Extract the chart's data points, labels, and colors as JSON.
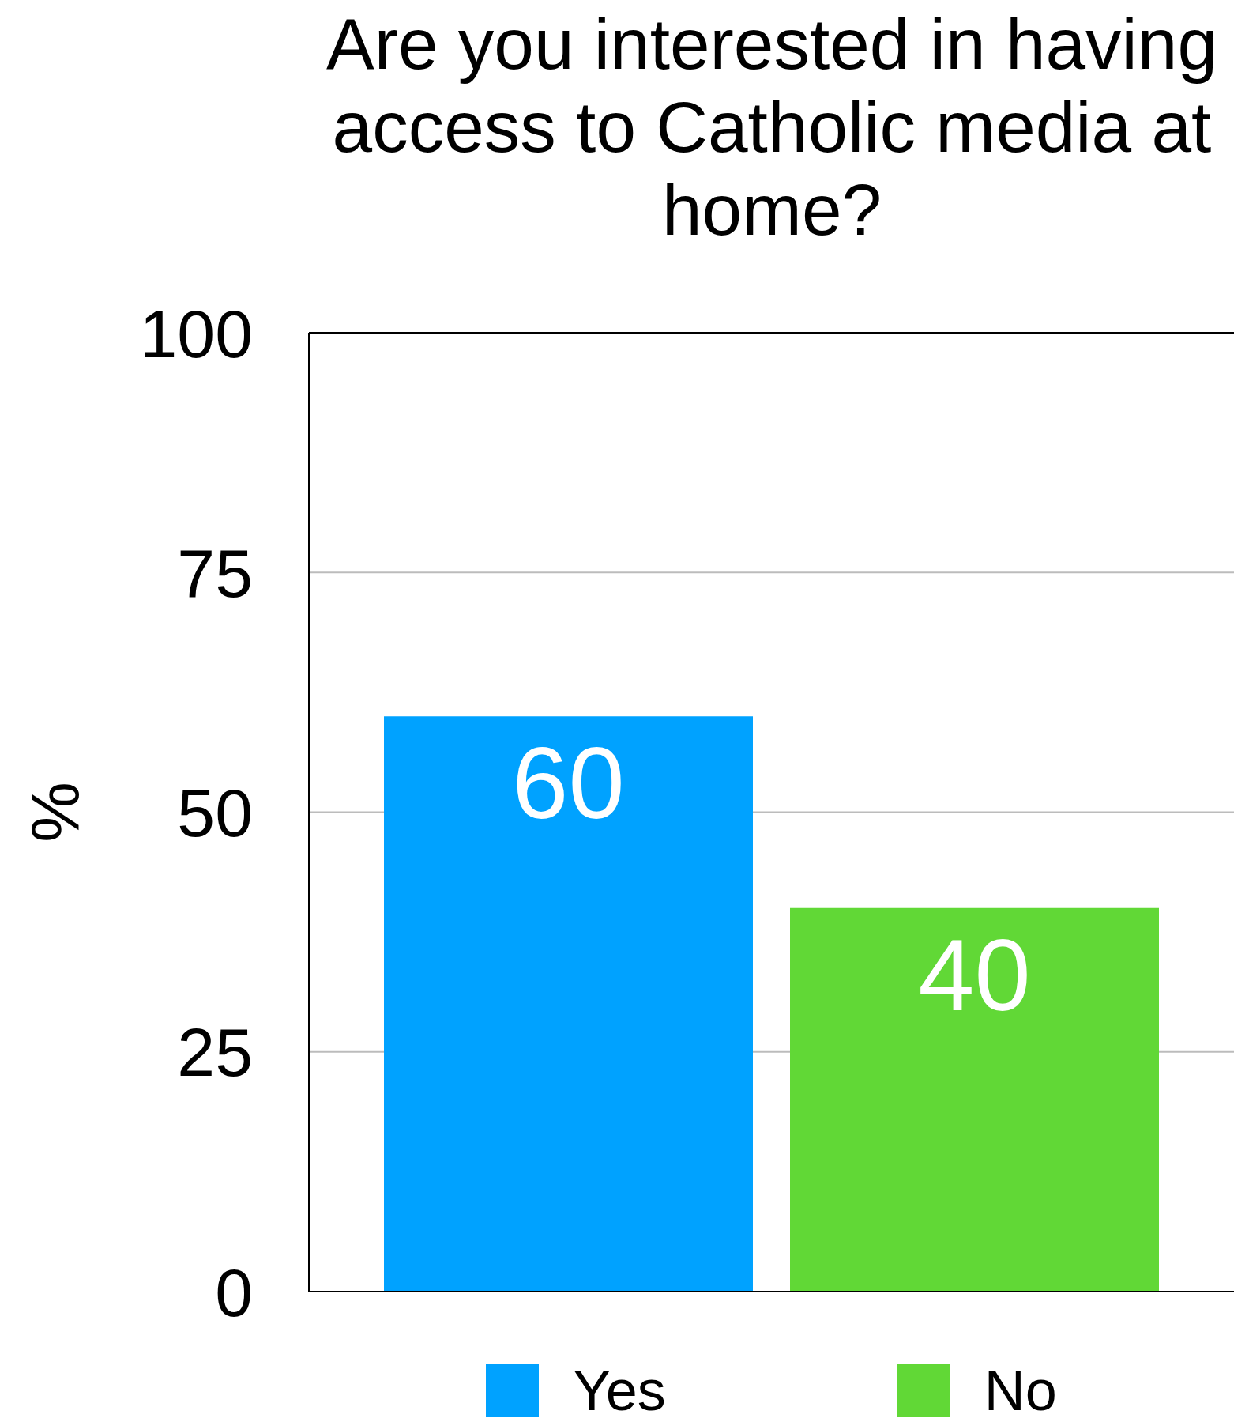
{
  "chart_data": {
    "type": "bar",
    "title": "Are you interested in having access to Catholic media at home?",
    "ylabel": "%",
    "categories": [
      null
    ],
    "series": [
      {
        "name": "Yes",
        "color": "#00a2ff",
        "values": [
          60
        ]
      },
      {
        "name": "No",
        "color": "#61d836",
        "values": [
          40
        ]
      }
    ],
    "ylim": [
      0,
      100
    ],
    "yticks": [
      0,
      25,
      50,
      75,
      100
    ],
    "grid": "y",
    "legend": "bottom",
    "data_labels": true
  }
}
